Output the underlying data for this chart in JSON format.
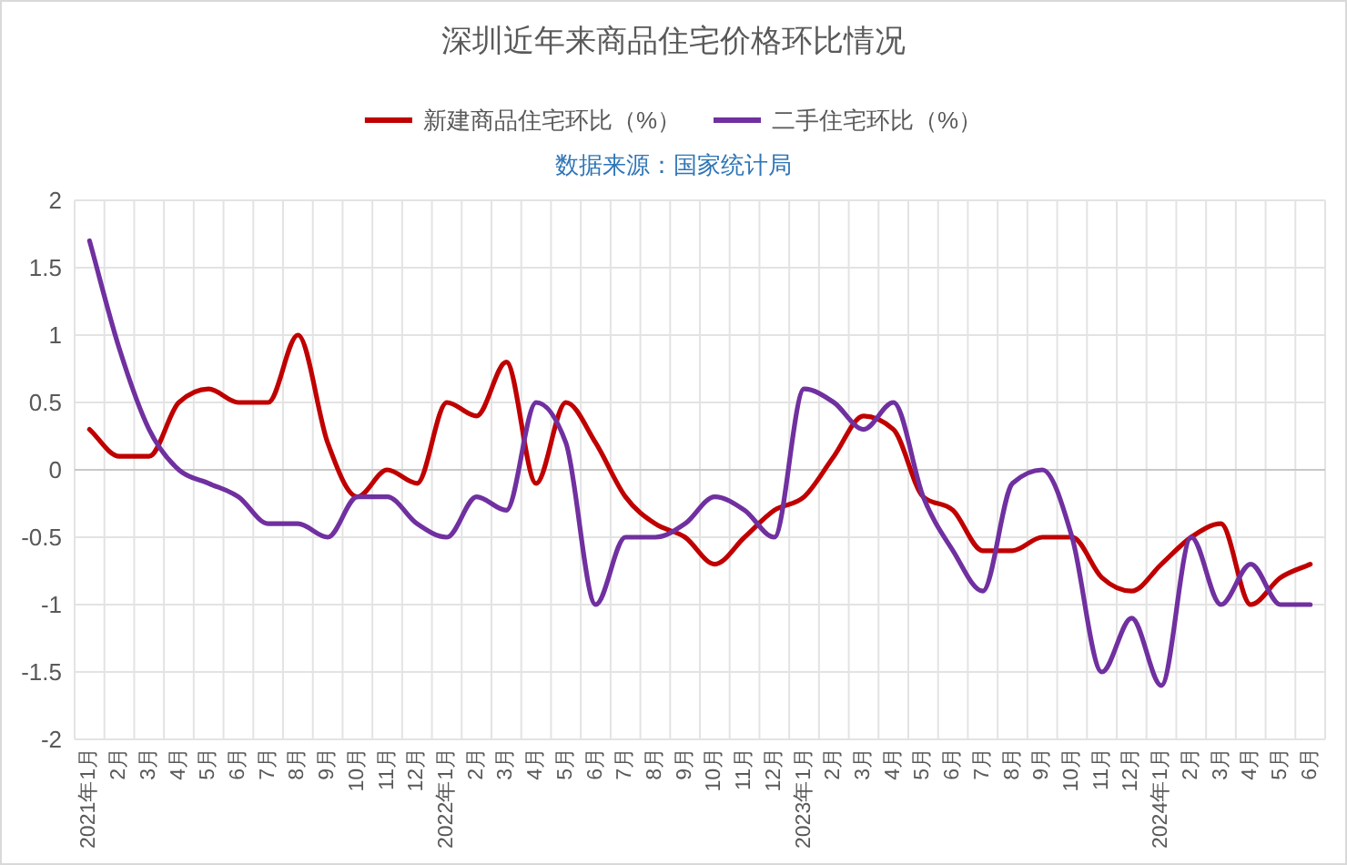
{
  "chart_data": {
    "type": "line",
    "title": "深圳近年来商品住宅价格环比情况",
    "annotations": [
      "数据来源：国家统计局"
    ],
    "categories": [
      "2021年1月",
      "2月",
      "3月",
      "4月",
      "5月",
      "6月",
      "7月",
      "8月",
      "9月",
      "10月",
      "11月",
      "12月",
      "2022年1月",
      "2月",
      "3月",
      "4月",
      "5月",
      "6月",
      "7月",
      "8月",
      "9月",
      "10月",
      "11月",
      "12月",
      "2023年1月",
      "2月",
      "3月",
      "4月",
      "5月",
      "6月",
      "7月",
      "8月",
      "9月",
      "10月",
      "11月",
      "12月",
      "2024年1月",
      "2月",
      "3月",
      "4月",
      "5月",
      "6月"
    ],
    "series": [
      {
        "name": "新建商品住宅环比（%）",
        "color": "#c00000",
        "values": [
          0.3,
          0.1,
          0.1,
          0.5,
          0.6,
          0.5,
          0.5,
          1.0,
          0.2,
          -0.2,
          0.0,
          -0.1,
          0.5,
          0.4,
          0.8,
          -0.1,
          0.5,
          0.2,
          -0.2,
          -0.4,
          -0.5,
          -0.7,
          -0.5,
          -0.3,
          -0.2,
          0.1,
          0.4,
          0.3,
          -0.2,
          -0.3,
          -0.6,
          -0.6,
          -0.5,
          -0.5,
          -0.8,
          -0.9,
          -0.7,
          -0.5,
          -0.4,
          -1.0,
          -0.8,
          -0.7
        ]
      },
      {
        "name": "二手住宅环比（%）",
        "color": "#7030a0",
        "values": [
          1.7,
          0.9,
          0.3,
          0.0,
          -0.1,
          -0.2,
          -0.4,
          -0.4,
          -0.5,
          -0.2,
          -0.2,
          -0.4,
          -0.5,
          -0.2,
          -0.3,
          0.5,
          0.2,
          -1.0,
          -0.5,
          -0.5,
          -0.4,
          -0.2,
          -0.3,
          -0.5,
          0.6,
          0.5,
          0.3,
          0.5,
          -0.2,
          -0.6,
          -0.9,
          -0.1,
          0.0,
          -0.5,
          -1.5,
          -1.1,
          -1.6,
          -0.5,
          -1.0,
          -0.7,
          -1.0,
          -1.0
        ]
      }
    ],
    "ylim": [
      -2,
      2
    ],
    "yticks": [
      2,
      1.5,
      1,
      0.5,
      0,
      -0.5,
      -1,
      -1.5,
      -2
    ],
    "grid": true,
    "legend": "top"
  }
}
